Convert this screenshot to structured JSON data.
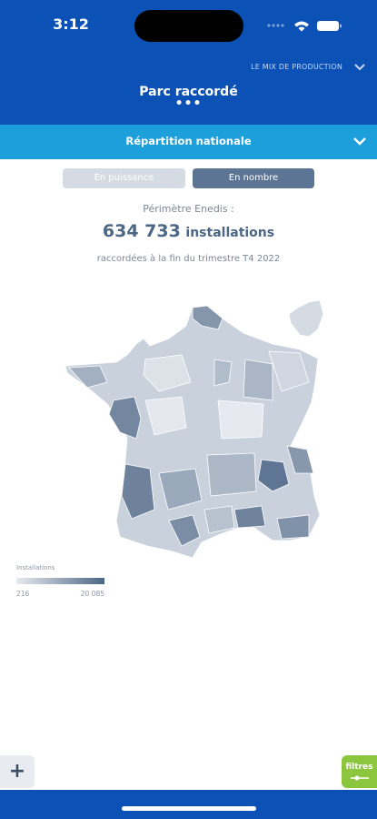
{
  "status_bar": {
    "time": "3:12"
  },
  "header": {
    "menu": "LE MIX DE PRODUCTION",
    "title": "Parc raccordé",
    "dots": "•••"
  },
  "section": {
    "title": "Répartition nationale"
  },
  "toggle": {
    "options": [
      "En puissance",
      "En nombre"
    ]
  },
  "summary": {
    "scope": "Périmètre Enedis :",
    "value": "634 733",
    "unit": "installations",
    "caption": "raccordées à la fin du trimestre T4 2022"
  },
  "legend": {
    "title": "Installations",
    "min": "216",
    "max": "20 085"
  },
  "buttons": {
    "add": "+",
    "filters": "filtres"
  }
}
